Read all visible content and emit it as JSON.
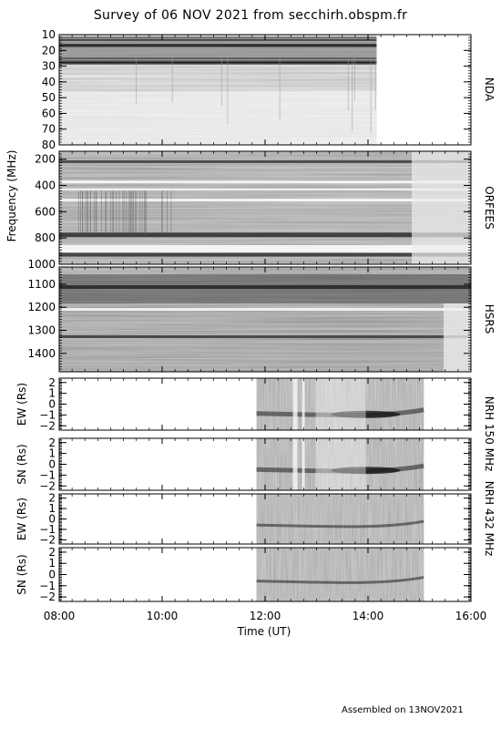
{
  "title": "Survey of 06 NOV 2021 from secchirh.obspm.fr",
  "footer": "Assembled on 13NOV2021",
  "chart_data": {
    "type": "heatmap",
    "xlabel": "Time (UT)",
    "x_ticks": [
      "08:00",
      "10:00",
      "12:00",
      "14:00",
      "16:00"
    ],
    "x_range": [
      "08:00",
      "16:00"
    ],
    "ylabel": "Frequency (MHz)",
    "colormap": "grayscale",
    "panels": [
      {
        "name": "NDA",
        "y_range": [
          10,
          80
        ],
        "y_ticks": [
          "10",
          "20",
          "30",
          "40",
          "50",
          "60",
          "70",
          "80"
        ],
        "data_span": [
          "08:00",
          "14:10"
        ]
      },
      {
        "name": "ORFEES",
        "y_range": [
          140,
          1000
        ],
        "y_ticks": [
          "200",
          "400",
          "600",
          "800",
          "1000"
        ],
        "data_span": [
          "08:00",
          "16:00"
        ]
      },
      {
        "name": "HSRS",
        "y_range": [
          1025,
          1480
        ],
        "y_ticks": [
          "1100",
          "1200",
          "1300",
          "1400"
        ],
        "data_span": [
          "08:00",
          "16:00"
        ]
      },
      {
        "name": "NRH 150 MHz EW",
        "ylabel": "EW (Rs)",
        "y_range": [
          -2.4,
          2.4
        ],
        "y_ticks": [
          "2",
          "1",
          "0",
          "−1",
          "−2"
        ],
        "data_span": [
          "11:50",
          "15:05"
        ]
      },
      {
        "name": "NRH 150 MHz SN",
        "ylabel": "SN (Rs)",
        "y_range": [
          -2.4,
          2.4
        ],
        "y_ticks": [
          "2",
          "1",
          "0",
          "−1",
          "−2"
        ],
        "data_span": [
          "11:50",
          "15:05"
        ]
      },
      {
        "name": "NRH 432 MHz EW",
        "ylabel": "EW (Rs)",
        "y_range": [
          -2.4,
          2.4
        ],
        "y_ticks": [
          "2",
          "1",
          "0",
          "−1",
          "−2"
        ],
        "data_span": [
          "11:50",
          "15:05"
        ]
      },
      {
        "name": "NRH 432 MHz SN",
        "ylabel": "SN (Rs)",
        "y_range": [
          -2.4,
          2.4
        ],
        "y_ticks": [
          "2",
          "1",
          "0",
          "−1",
          "−2"
        ],
        "data_span": [
          "11:50",
          "15:05"
        ]
      }
    ],
    "side_labels": [
      "NDA",
      "ORFEES",
      "HSRS",
      "NRH 150 MHz",
      "NRH 432 MHz"
    ]
  }
}
